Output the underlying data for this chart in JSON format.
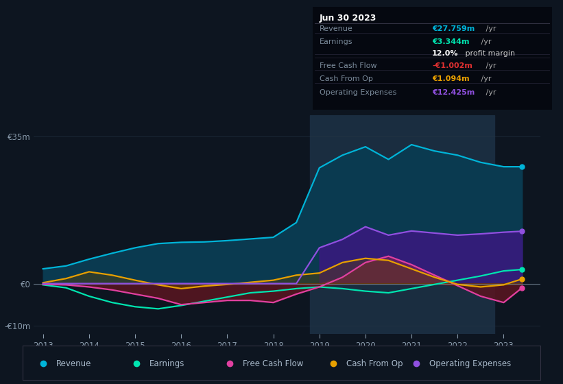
{
  "bg_color": "#0d1520",
  "plot_bg_color": "#0d1520",
  "highlight_bg": "#162030",
  "grid_color": "#253545",
  "zero_line_color": "#7a8a9a",
  "years": [
    2013,
    2013.5,
    2014,
    2014.5,
    2015,
    2015.5,
    2016,
    2016.5,
    2017,
    2017.5,
    2018,
    2018.5,
    2019,
    2019.5,
    2020,
    2020.5,
    2021,
    2021.5,
    2022,
    2022.5,
    2023,
    2023.4
  ],
  "revenue": [
    3.5,
    4.2,
    5.8,
    7.2,
    8.5,
    9.5,
    9.8,
    9.9,
    10.2,
    10.6,
    11.0,
    14.5,
    27.5,
    30.5,
    32.5,
    29.5,
    33.0,
    31.5,
    30.5,
    28.8,
    27.759,
    27.759
  ],
  "earnings": [
    -0.3,
    -1.0,
    -3.0,
    -4.5,
    -5.5,
    -6.0,
    -5.2,
    -4.2,
    -3.2,
    -2.2,
    -1.8,
    -1.2,
    -0.8,
    -1.2,
    -1.8,
    -2.2,
    -1.2,
    -0.2,
    0.8,
    1.8,
    3.0,
    3.344
  ],
  "free_cash_flow": [
    -0.2,
    -0.3,
    -0.8,
    -1.5,
    -2.5,
    -3.5,
    -5.0,
    -4.5,
    -4.0,
    -4.0,
    -4.5,
    -2.5,
    -0.8,
    1.5,
    5.0,
    6.5,
    4.5,
    2.0,
    -0.5,
    -3.0,
    -4.5,
    -1.002
  ],
  "cash_from_op": [
    0.2,
    1.2,
    2.8,
    2.0,
    0.8,
    -0.3,
    -1.2,
    -0.6,
    -0.2,
    0.3,
    0.8,
    2.0,
    2.5,
    5.0,
    6.0,
    5.5,
    3.5,
    1.5,
    -0.2,
    -0.8,
    -0.3,
    1.094
  ],
  "op_expenses": [
    0.0,
    0.0,
    0.0,
    0.0,
    0.0,
    0.0,
    0.0,
    0.0,
    0.0,
    0.0,
    0.0,
    0.0,
    8.5,
    10.5,
    13.5,
    11.5,
    12.5,
    12.0,
    11.5,
    11.8,
    12.2,
    12.425
  ],
  "revenue_color": "#00b4d8",
  "earnings_color": "#00e5b0",
  "free_cash_flow_color": "#e040a0",
  "cash_from_op_color": "#e8a000",
  "op_expenses_color": "#9050e0",
  "revenue_fill": "#0a3a50",
  "op_expenses_fill": "#3a1880",
  "fcf_neg_fill": "#5a1520",
  "fcf_pos_fill": "#802050",
  "cfo_fill": "#604000",
  "ylim": [
    -12,
    40
  ],
  "xlim": [
    2012.8,
    2023.8
  ],
  "xticks": [
    2013,
    2014,
    2015,
    2016,
    2017,
    2018,
    2019,
    2020,
    2021,
    2022,
    2023
  ],
  "highlight_start": 2018.8,
  "highlight_end": 2022.8,
  "info_title": "Jun 30 2023",
  "legend": [
    {
      "label": "Revenue",
      "color": "#00b4d8"
    },
    {
      "label": "Earnings",
      "color": "#00e5b0"
    },
    {
      "label": "Free Cash Flow",
      "color": "#e040a0"
    },
    {
      "label": "Cash From Op",
      "color": "#e8a000"
    },
    {
      "label": "Operating Expenses",
      "color": "#9050e0"
    }
  ]
}
